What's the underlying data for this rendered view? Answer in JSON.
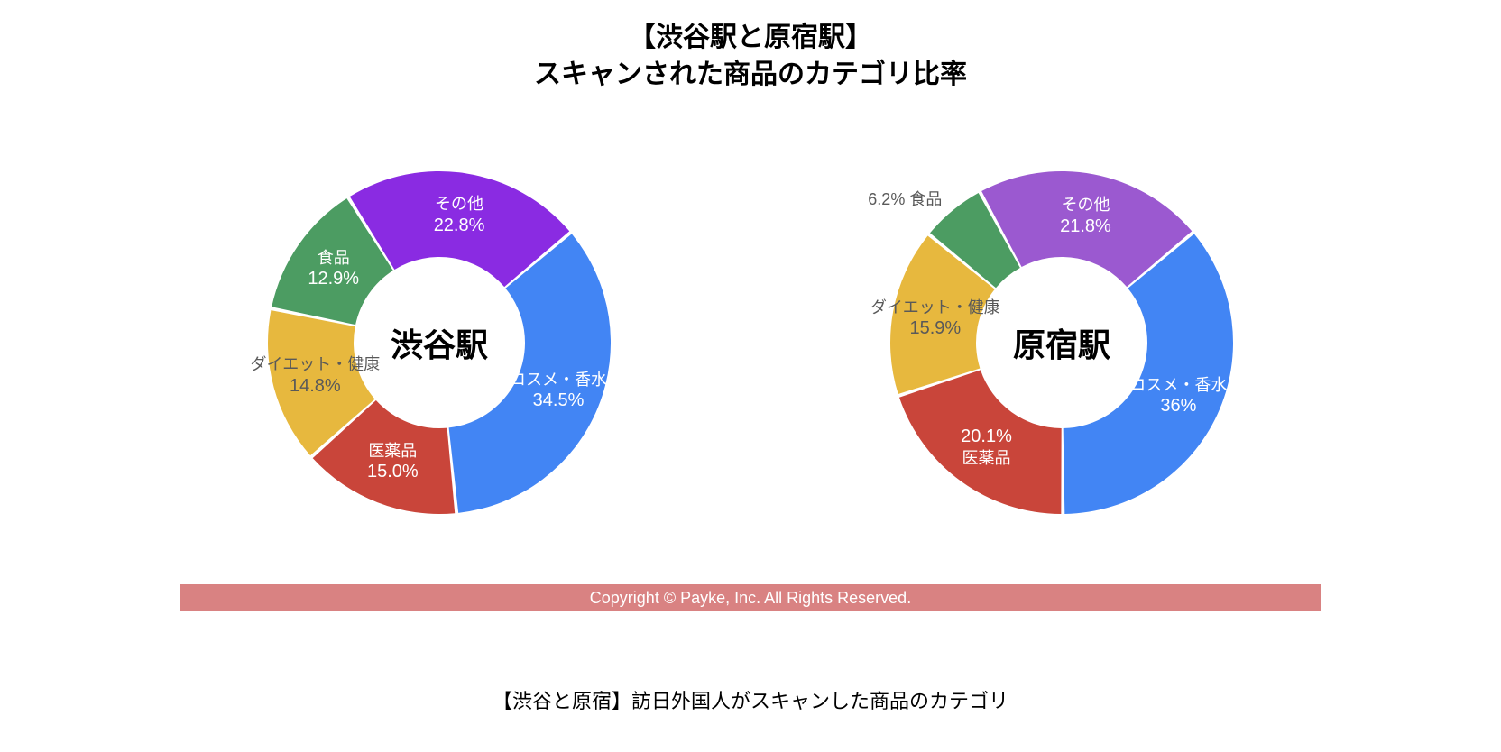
{
  "title": {
    "line1": "【渋谷駅と原宿駅】",
    "line2": "スキャンされた商品のカテゴリ比率",
    "fontsize": 30,
    "color": "#000000"
  },
  "caption": {
    "text": "【渋谷と原宿】訪日外国人がスキャンした商品のカテゴリ",
    "fontsize": 22,
    "color": "#000000"
  },
  "copyright": {
    "text": "Copyright © Payke, Inc. All Rights Reserved.",
    "bar_color": "#d98282",
    "text_color": "#ffffff",
    "fontsize": 18
  },
  "donut_style": {
    "outer_radius": 190,
    "inner_radius": 95,
    "start_angle_deg": -40,
    "svg_size": 400,
    "slice_gap_deg": 1.2,
    "center_label_fontsize": 36,
    "center_label_color": "#000000",
    "slice_label_fontsize_cat": 18,
    "slice_label_fontsize_pct": 20,
    "slice_label_color": "#ffffff",
    "ext_label_color": "#595959",
    "ext_label_fontsize": 18
  },
  "charts": [
    {
      "id": "shibuya",
      "center_label": "渋谷駅",
      "slices": [
        {
          "category": "コスメ・香水",
          "value": 34.5,
          "pct_label": "34.5%",
          "color": "#4285f4",
          "label_pos": "inside"
        },
        {
          "category": "医薬品",
          "value": 15.0,
          "pct_label": "15.0%",
          "color": "#c9453a",
          "label_pos": "inside"
        },
        {
          "category": "ダイエット・健康",
          "value": 14.8,
          "pct_label": "14.8%",
          "color": "#e7b83e",
          "label_pos": "inside",
          "label_color_override": "#595959"
        },
        {
          "category": "食品",
          "value": 12.9,
          "pct_label": "12.9%",
          "color": "#4c9c62",
          "label_pos": "inside"
        },
        {
          "category": "その他",
          "value": 22.8,
          "pct_label": "22.8%",
          "color": "#8a2be2",
          "label_pos": "inside"
        }
      ]
    },
    {
      "id": "harajuku",
      "center_label": "原宿駅",
      "slices": [
        {
          "category": "コスメ・香水",
          "value": 36.0,
          "pct_label": "36%",
          "color": "#4285f4",
          "label_pos": "inside"
        },
        {
          "category": "医薬品",
          "value": 20.1,
          "pct_label": "20.1%",
          "color": "#c9453a",
          "label_pos": "inside",
          "label_order": "pct_first"
        },
        {
          "category": "ダイエット・健康",
          "value": 15.9,
          "pct_label": "15.9%",
          "color": "#e7b83e",
          "label_pos": "inside",
          "label_color_override": "#595959"
        },
        {
          "category": "食品",
          "value": 6.2,
          "pct_label": "6.2%",
          "color": "#4c9c62",
          "label_pos": "outside"
        },
        {
          "category": "その他",
          "value": 21.8,
          "pct_label": "21.8%",
          "color": "#9b59d0",
          "label_pos": "inside"
        }
      ]
    }
  ]
}
